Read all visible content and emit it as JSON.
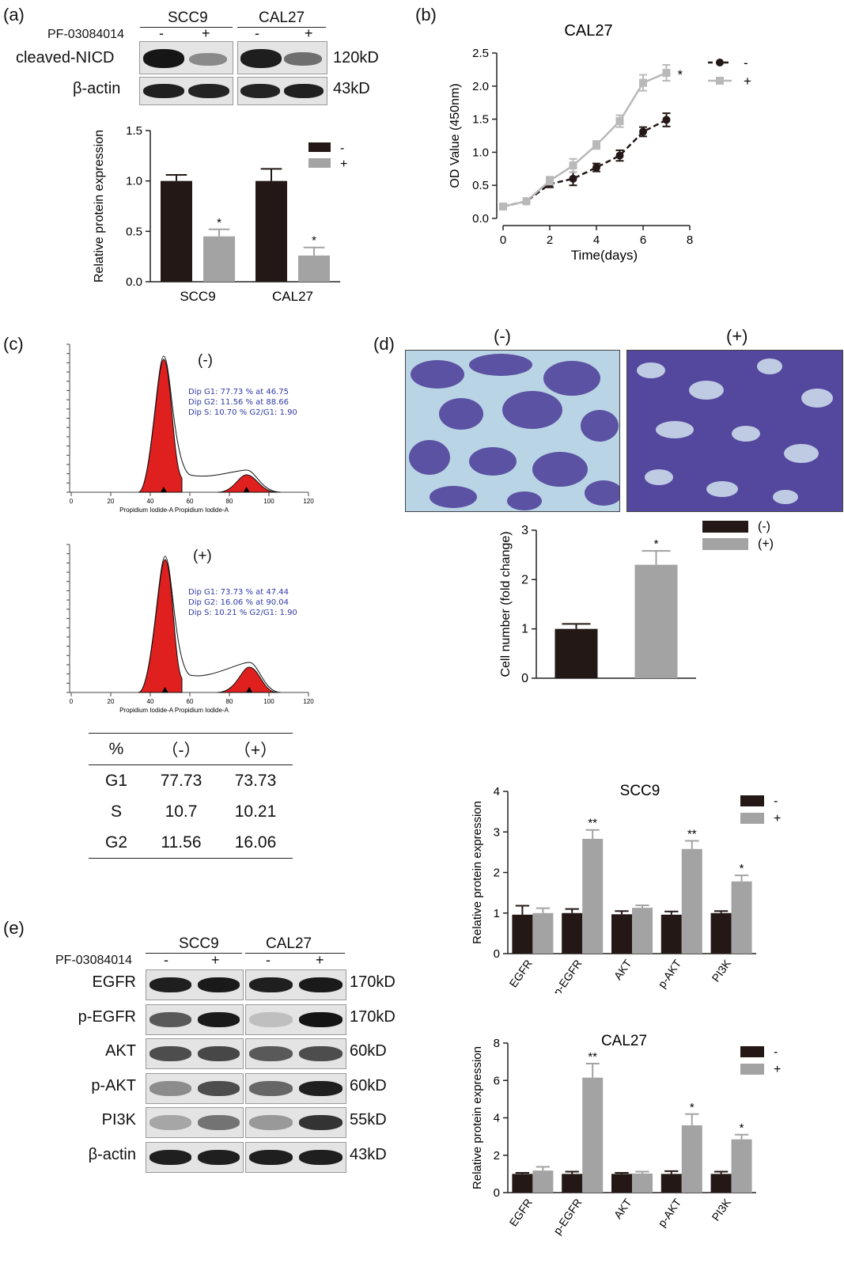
{
  "panels": {
    "a": {
      "label": "(a)",
      "blot": {
        "group1": "SCC9",
        "group2": "CAL27",
        "treatment_label": "PF-03084014",
        "lane_signs": [
          "-",
          "+",
          "-",
          "+"
        ],
        "rows": [
          {
            "label": "cleaved-NICD",
            "kd": "120kD"
          },
          {
            "label": "β-actin",
            "kd": "43kD"
          }
        ]
      }
    },
    "b": {
      "label": "(b)"
    },
    "c": {
      "label": "(c)",
      "hist1": {
        "title": "(-)",
        "stats": [
          "Dip G1: 77.73 % at 46.75",
          "Dip G2: 11.56 % at 88.66",
          "Dip S: 10.70 %   G2/G1: 1.90"
        ],
        "xlabel": "Propidium Iodide-A Propidium Iodide-A"
      },
      "hist2": {
        "title": "(+)",
        "stats": [
          "Dip G1: 73.73 % at 47.44",
          "Dip G2: 16.06 % at 90.04",
          "Dip S: 10.21 %   G2/G1: 1.90"
        ],
        "xlabel": "Propidium Iodide-A Propidium Iodide-A"
      },
      "hist_ticks": [
        "0",
        "20",
        "40",
        "60",
        "80",
        "100",
        "120"
      ],
      "table": {
        "headers": [
          "%",
          "（-）",
          "（+）"
        ],
        "rows": [
          [
            "G1",
            "77.73",
            "73.73"
          ],
          [
            "S",
            "10.7",
            "10.21"
          ],
          [
            "G2",
            "11.56",
            "16.06"
          ]
        ]
      }
    },
    "d": {
      "label": "(d)",
      "image_titles": [
        "(-)",
        "(+)"
      ]
    },
    "e": {
      "label": "(e)",
      "blot": {
        "group1": "SCC9",
        "group2": "CAL27",
        "treatment_label": "PF-03084014",
        "lane_signs": [
          "-",
          "+",
          "-",
          "+"
        ],
        "rows": [
          {
            "label": "EGFR",
            "kd": "170kD"
          },
          {
            "label": "p-EGFR",
            "kd": "170kD"
          },
          {
            "label": "AKT",
            "kd": "60kD"
          },
          {
            "label": "p-AKT",
            "kd": "60kD"
          },
          {
            "label": "PI3K",
            "kd": "55kD"
          },
          {
            "label": "β-actin",
            "kd": "43kD"
          }
        ]
      }
    }
  },
  "colors": {
    "dark": "#231816",
    "light": "#a3a3a3",
    "flow_red": "#e0201e",
    "crystal_violet": "#54479e"
  },
  "chart_data": [
    {
      "id": "a-bar",
      "type": "bar",
      "categories": [
        "SCC9",
        "CAL27"
      ],
      "series": [
        {
          "name": "-",
          "values": [
            1.0,
            1.0
          ],
          "errors": [
            0.06,
            0.12
          ],
          "color": "#231816"
        },
        {
          "name": "+",
          "values": [
            0.45,
            0.26
          ],
          "errors": [
            0.07,
            0.08
          ],
          "color": "#a3a3a3"
        }
      ],
      "significance": [
        "*",
        "*"
      ],
      "ylabel": "Relative protein expression",
      "ylim": [
        0,
        1.5
      ],
      "yticks": [
        "0.0",
        "0.5",
        "1.0",
        "1.5"
      ],
      "legend_position": "top-right"
    },
    {
      "id": "b-line",
      "type": "line",
      "title": "CAL27",
      "x": [
        0,
        1,
        2,
        3,
        4,
        5,
        6,
        7
      ],
      "series": [
        {
          "name": "-",
          "values": [
            0.18,
            0.26,
            0.52,
            0.6,
            0.77,
            0.95,
            1.31,
            1.49
          ],
          "errors": [
            0.02,
            0.02,
            0.05,
            0.1,
            0.06,
            0.08,
            0.07,
            0.1
          ],
          "color": "#231816"
        },
        {
          "name": "+",
          "values": [
            0.18,
            0.26,
            0.57,
            0.8,
            1.11,
            1.47,
            2.05,
            2.2
          ],
          "errors": [
            0.02,
            0.02,
            0.06,
            0.1,
            0.06,
            0.09,
            0.12,
            0.12
          ],
          "color": "#b9b9b9"
        }
      ],
      "significance": "*",
      "xlabel": "Time(days)",
      "ylabel": "OD Value (450nm)",
      "xlim": [
        0,
        8
      ],
      "ylim": [
        0,
        2.5
      ],
      "xticks": [
        "0",
        "2",
        "4",
        "6",
        "8"
      ],
      "yticks": [
        "0.0",
        "0.5",
        "1.0",
        "1.5",
        "2.0",
        "2.5"
      ],
      "legend_position": "top-right"
    },
    {
      "id": "d-bar",
      "type": "bar",
      "categories": [
        "(-)",
        "(+)"
      ],
      "values": [
        1.0,
        2.3
      ],
      "errors": [
        0.1,
        0.28
      ],
      "colors": [
        "#231816",
        "#a3a3a3"
      ],
      "legend": [
        "(-)",
        "(+)"
      ],
      "significance": [
        "",
        "*"
      ],
      "ylabel": "Cell number (fold change)",
      "ylim": [
        0,
        3
      ],
      "yticks": [
        "0",
        "1",
        "2",
        "3"
      ],
      "legend_position": "top-right"
    },
    {
      "id": "e-scc9",
      "type": "bar",
      "title": "SCC9",
      "categories": [
        "EGFR",
        "p-EGFR",
        "AKT",
        "p-AKT",
        "PI3K"
      ],
      "series": [
        {
          "name": "-",
          "values": [
            0.96,
            1.0,
            0.97,
            0.96,
            1.0
          ],
          "errors": [
            0.22,
            0.1,
            0.08,
            0.08,
            0.05
          ],
          "color": "#231816"
        },
        {
          "name": "+",
          "values": [
            1.0,
            2.83,
            1.13,
            2.58,
            1.78
          ],
          "errors": [
            0.12,
            0.22,
            0.06,
            0.2,
            0.15
          ],
          "color": "#a3a3a3"
        }
      ],
      "significance": [
        "",
        "**",
        "",
        "**",
        "*"
      ],
      "ylabel": "Relative protein expression",
      "ylim": [
        0,
        4
      ],
      "yticks": [
        "0",
        "1",
        "2",
        "3",
        "4"
      ],
      "legend_position": "top-right"
    },
    {
      "id": "e-cal27",
      "type": "bar",
      "title": "CAL27",
      "categories": [
        "EGFR",
        "p-EGFR",
        "AKT",
        "p-AKT",
        "PI3K"
      ],
      "series": [
        {
          "name": "-",
          "values": [
            1.0,
            1.0,
            1.0,
            1.0,
            1.0
          ],
          "errors": [
            0.06,
            0.12,
            0.06,
            0.15,
            0.12
          ],
          "color": "#231816"
        },
        {
          "name": "+",
          "values": [
            1.18,
            6.15,
            1.02,
            3.6,
            2.85
          ],
          "errors": [
            0.2,
            0.75,
            0.1,
            0.6,
            0.25
          ],
          "color": "#a3a3a3"
        }
      ],
      "significance": [
        "",
        "**",
        "",
        "*",
        "*"
      ],
      "ylabel": "Relative protein expression",
      "ylim": [
        0,
        8
      ],
      "yticks": [
        "0",
        "2",
        "4",
        "6",
        "8"
      ],
      "legend_position": "top-right"
    }
  ]
}
